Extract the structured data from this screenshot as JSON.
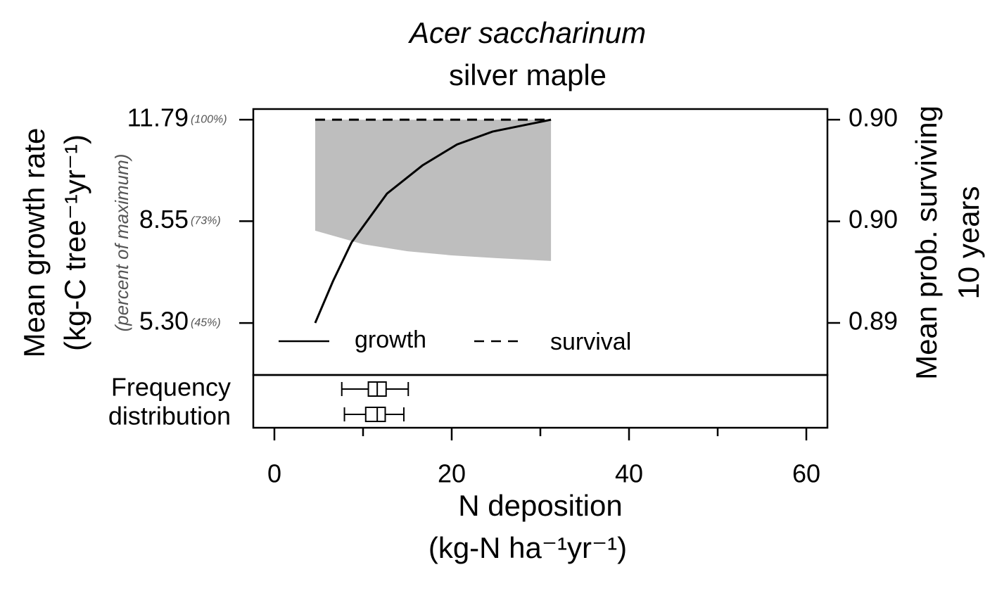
{
  "chart_data": {
    "type": "line",
    "title": "Acer saccharinum",
    "subtitle": "silver maple",
    "xlabel": [
      "N deposition",
      "(kg-N ha⁻¹yr⁻¹)"
    ],
    "ylabel": [
      "Mean growth rate",
      "(kg-C tree⁻¹yr⁻¹)"
    ],
    "ylabel_note": "(percent of maximum)",
    "y2label": [
      "Mean prob. surviving",
      "10 years"
    ],
    "freq_label": [
      "Frequency",
      "distribution"
    ],
    "xlim": [
      -2.38,
      62.38
    ],
    "xticks": [
      0,
      20,
      40,
      60
    ],
    "xminor_ticks": [
      10,
      30,
      50
    ],
    "ylim": [
      3.64,
      12.13
    ],
    "yticks": [
      11.79,
      8.55,
      {
        "value": 5.3,
        "label": "5.30"
      }
    ],
    "ytick_percent_labels": [
      "(100%)",
      "(73%)",
      "(45%)"
    ],
    "y2lim": [
      0.89195,
      0.90242
    ],
    "y2ticks": [
      {
        "value": 0.902,
        "label": "0.90"
      },
      {
        "value": 0.898,
        "label": "0.90"
      },
      {
        "value": 0.894,
        "label": "0.89"
      }
    ],
    "legend": "bottom-left",
    "series": [
      {
        "name": "growth",
        "color": "#000000",
        "dash": "solid",
        "x": [
          4.6,
          6.6,
          8.7,
          12.7,
          16.7,
          20.6,
          24.6,
          31.2
        ],
        "values": [
          5.3,
          6.63,
          7.87,
          9.43,
          10.33,
          11.0,
          11.41,
          11.79
        ]
      },
      {
        "name": "survival",
        "color": "#000000",
        "dash": "dashed",
        "axis": "y2",
        "x": [
          4.6,
          31.2
        ],
        "values": [
          0.902,
          0.902
        ],
        "band": {
          "color": "#bebebe",
          "x": [
            4.6,
            10,
            15,
            20,
            25,
            31.2
          ],
          "upper": [
            0.902,
            0.902,
            0.902,
            0.902,
            0.902,
            0.902
          ],
          "lower": [
            0.89763,
            0.8971,
            0.89682,
            0.89666,
            0.89655,
            0.89644
          ]
        }
      }
    ],
    "boxplots": [
      {
        "min": 7.6,
        "q1": 10.6,
        "median": 11.6,
        "q3": 12.6,
        "max": 15.1
      },
      {
        "min": 7.9,
        "q1": 10.3,
        "median": 11.6,
        "q3": 12.5,
        "max": 14.6
      }
    ]
  }
}
